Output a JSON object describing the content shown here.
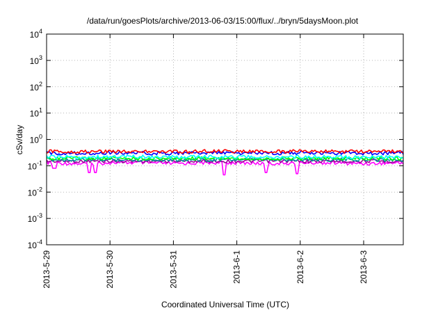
{
  "chart_data": {
    "type": "line",
    "title": "/data/run/goesPlots/archive/2013-06-03/15:00/flux/../bryn/5daysMoon.plot",
    "xlabel": "Coordinated Universal Time (UTC)",
    "ylabel": "cSv/day",
    "yscale": "log",
    "ylim": [
      0.0001,
      10000
    ],
    "xlim": [
      "2013-05-29T00:00",
      "2013-06-03T15:00"
    ],
    "grid": true,
    "y_ticks": [
      {
        "base": "10",
        "exp": "-4"
      },
      {
        "base": "10",
        "exp": "-3"
      },
      {
        "base": "10",
        "exp": "-2"
      },
      {
        "base": "10",
        "exp": "-1"
      },
      {
        "base": "10",
        "exp": "0"
      },
      {
        "base": "10",
        "exp": "1"
      },
      {
        "base": "10",
        "exp": "2"
      },
      {
        "base": "10",
        "exp": "3"
      },
      {
        "base": "10",
        "exp": "4"
      }
    ],
    "x_ticks": [
      {
        "label": "2013-5-29",
        "date": "2013-05-29"
      },
      {
        "label": "2013-5-30",
        "date": "2013-05-30"
      },
      {
        "label": "2013-5-31",
        "date": "2013-05-31"
      },
      {
        "label": "2013-6-1",
        "date": "2013-06-01"
      },
      {
        "label": "2013-6-2",
        "date": "2013-06-02"
      },
      {
        "label": "2013-6-3",
        "date": "2013-06-03"
      }
    ],
    "x_dates": [
      "2013-05-29T00:00",
      "2013-05-29T12:00",
      "2013-05-30T00:00",
      "2013-05-30T12:00",
      "2013-05-31T00:00",
      "2013-05-31T12:00",
      "2013-06-01T00:00",
      "2013-06-01T12:00",
      "2013-06-02T00:00",
      "2013-06-02T12:00",
      "2013-06-03T00:00",
      "2013-06-03T15:00"
    ],
    "series": [
      {
        "color": "#ff00ff",
        "values": [
          0.13,
          0.12,
          0.13,
          0.13,
          0.12,
          0.13,
          0.13,
          0.12,
          0.13,
          0.13,
          0.12,
          0.13
        ],
        "dips": [
          [
            "2013-05-29T03:00",
            0.08
          ],
          [
            "2013-05-29T16:00",
            0.055
          ],
          [
            "2013-05-29T18:30",
            0.055
          ],
          [
            "2013-05-31T19:00",
            0.045
          ],
          [
            "2013-06-01T11:00",
            0.055
          ],
          [
            "2013-06-01T23:00",
            0.05
          ]
        ]
      },
      {
        "color": "#990099",
        "values": [
          0.15,
          0.15,
          0.15,
          0.15,
          0.15,
          0.15,
          0.15,
          0.15,
          0.15,
          0.15,
          0.15,
          0.15
        ]
      },
      {
        "color": "#009999",
        "values": [
          0.17,
          0.17,
          0.17,
          0.17,
          0.17,
          0.17,
          0.17,
          0.17,
          0.17,
          0.17,
          0.17,
          0.17
        ]
      },
      {
        "color": "#00ff00",
        "values": [
          0.19,
          0.19,
          0.19,
          0.19,
          0.19,
          0.19,
          0.19,
          0.19,
          0.19,
          0.19,
          0.19,
          0.19
        ]
      },
      {
        "color": "#00ffff",
        "values": [
          0.22,
          0.21,
          0.22,
          0.22,
          0.21,
          0.22,
          0.22,
          0.21,
          0.22,
          0.22,
          0.21,
          0.22
        ]
      },
      {
        "color": "#0000ff",
        "values": [
          0.3,
          0.3,
          0.31,
          0.3,
          0.3,
          0.31,
          0.3,
          0.3,
          0.31,
          0.3,
          0.3,
          0.31
        ]
      },
      {
        "color": "#ff0000",
        "values": [
          0.35,
          0.34,
          0.36,
          0.35,
          0.34,
          0.36,
          0.35,
          0.34,
          0.36,
          0.35,
          0.34,
          0.36
        ]
      }
    ]
  }
}
